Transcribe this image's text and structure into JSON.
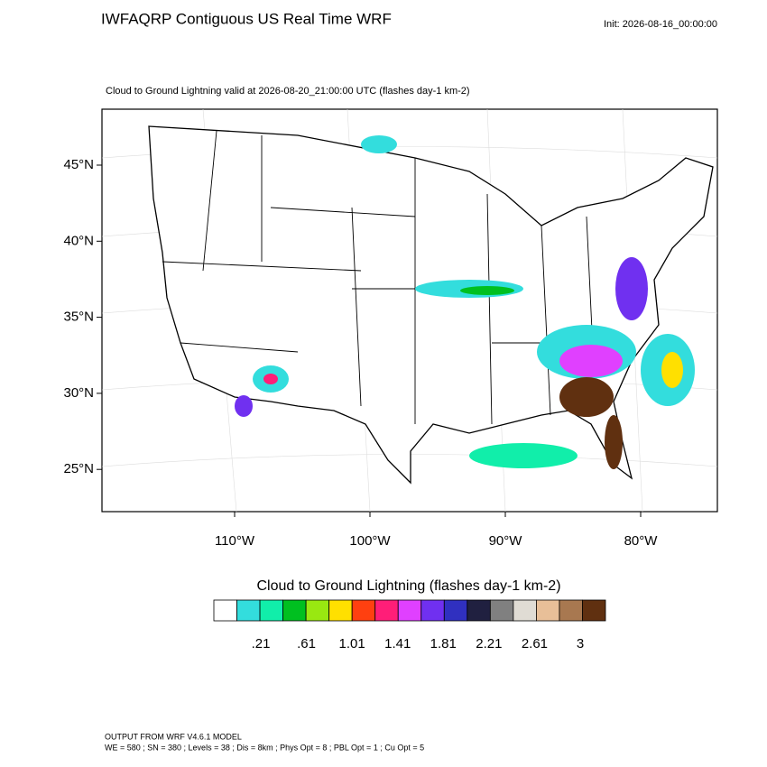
{
  "header": {
    "title": "IWFAQRP Contiguous US Real Time WRF",
    "init": "Init: 2026-08-16_00:00:00"
  },
  "map": {
    "subtitle": "Cloud to Ground Lightning valid at 2026-08-20_21:00:00 UTC   (flashes day-1 km-2)",
    "lat_labels": [
      "45°N",
      "40°N",
      "35°N",
      "30°N",
      "25°N"
    ],
    "lon_labels": [
      "110°W",
      "100°W",
      "90°W",
      "80°W"
    ]
  },
  "colorbar": {
    "title": "Cloud to Ground Lightning  (flashes day-1 km-2)",
    "colors": [
      "#ffffff",
      "#33dddd",
      "#11eeaa",
      "#00c020",
      "#99e811",
      "#ffe000",
      "#ff4010",
      "#ff1e78",
      "#e040ff",
      "#7030f0",
      "#3030c0",
      "#202040",
      "#808080",
      "#e0dcd4",
      "#e8bf98",
      "#a87850",
      "#603010"
    ],
    "labels": [
      ".21",
      ".61",
      "1.01",
      "1.41",
      "1.81",
      "2.21",
      "2.61",
      "3"
    ]
  },
  "footer": {
    "line1": "OUTPUT FROM WRF V4.6.1 MODEL",
    "line2": "WE = 580 ; SN = 380 ; Levels = 38 ; Dis = 8km ; Phys Opt = 8 ; PBL Opt = 1 ; Cu Opt = 5"
  }
}
